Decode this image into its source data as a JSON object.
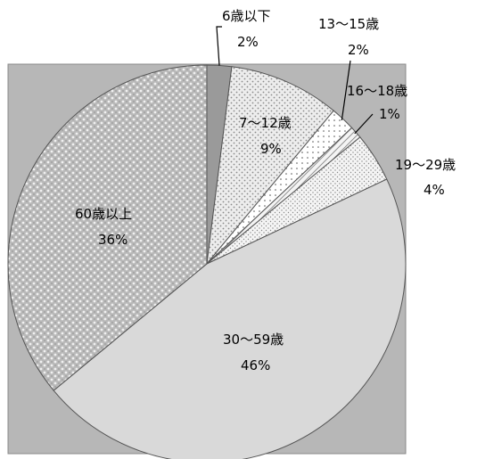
{
  "chart_data": {
    "type": "pie",
    "title": "",
    "categories": [
      "6歳以下",
      "7～12歳",
      "13～15歳",
      "16～18歳",
      "19～29歳",
      "30～59歳",
      "60歳以上"
    ],
    "values": [
      2,
      9,
      2,
      1,
      4,
      46,
      36
    ],
    "value_labels": [
      "2%",
      "9%",
      "2%",
      "1%",
      "4%",
      "46%",
      "36%"
    ],
    "start_angle_deg": 0,
    "direction": "clockwise",
    "legend": "none",
    "colors": {
      "background": "#b7b7b7",
      "age_6_under": "#9a9a9a",
      "age_7_12": "#ececec",
      "age_13_15": "#ffffff",
      "age_16_18": "#d0d0d0",
      "age_19_29": "#f2f2f2",
      "age_30_59": "#d9d9d9",
      "age_60_over": "#cfcfcf"
    }
  }
}
